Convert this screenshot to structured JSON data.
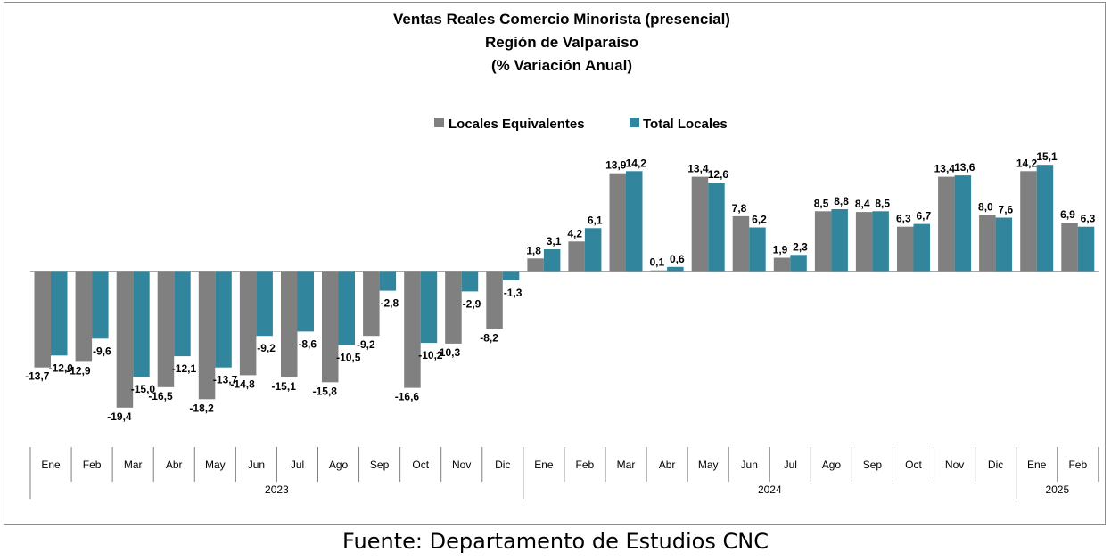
{
  "chart_data": {
    "type": "bar",
    "title_lines": [
      "Ventas Reales Comercio Minorista (presencial)",
      "Región de Valparaíso",
      "(% Variación Anual)"
    ],
    "categories": [
      "Ene",
      "Feb",
      "Mar",
      "Abr",
      "May",
      "Jun",
      "Jul",
      "Ago",
      "Sep",
      "Oct",
      "Nov",
      "Dic",
      "Ene",
      "Feb",
      "Mar",
      "Abr",
      "May",
      "Jun",
      "Jul",
      "Ago",
      "Sep",
      "Oct",
      "Nov",
      "Dic",
      "Ene",
      "Feb"
    ],
    "years": [
      {
        "label": "2023",
        "count": 12
      },
      {
        "label": "2024",
        "count": 12
      },
      {
        "label": "2025",
        "count": 2
      }
    ],
    "series": [
      {
        "name": "Locales Equivalentes",
        "color": "#808080",
        "values": [
          -13.7,
          -12.9,
          -19.4,
          -16.5,
          -18.2,
          -14.8,
          -15.1,
          -15.8,
          -9.2,
          -16.6,
          -10.3,
          -8.2,
          1.8,
          4.2,
          13.9,
          0.1,
          13.4,
          7.8,
          1.9,
          8.5,
          8.4,
          6.3,
          13.4,
          8.0,
          14.2,
          6.9
        ]
      },
      {
        "name": "Total Locales",
        "color": "#31859C",
        "values": [
          -12.0,
          -9.6,
          -15.0,
          -12.1,
          -13.7,
          -9.2,
          -8.6,
          -10.5,
          -2.8,
          -10.2,
          -2.9,
          -1.3,
          3.1,
          6.1,
          14.2,
          0.6,
          12.6,
          6.2,
          2.3,
          8.8,
          8.5,
          6.7,
          13.6,
          7.6,
          15.1,
          6.3
        ]
      }
    ],
    "legend_position": "top-center",
    "grid": false
  },
  "source": "Fuente: Departamento de Estudios CNC"
}
